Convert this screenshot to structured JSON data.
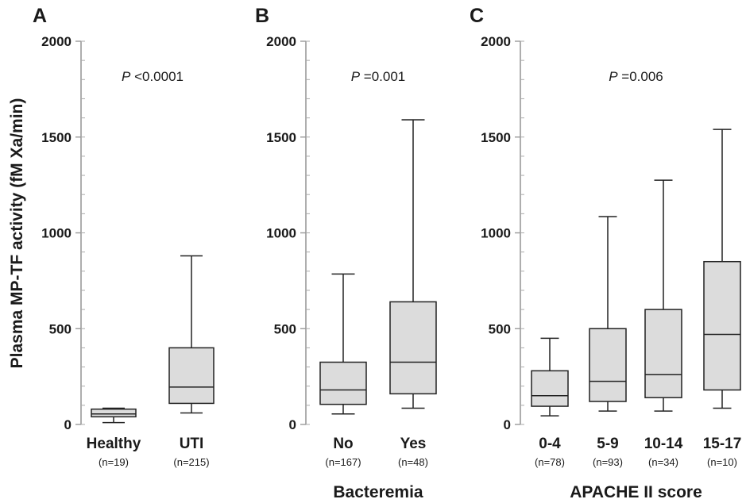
{
  "ylabel": "Plasma MP-TF activity (fM Xa/min)",
  "chart_data": [
    {
      "panel": "A",
      "type": "box",
      "xlabel": "",
      "ylim": [
        0,
        2000
      ],
      "yticks": [
        0,
        500,
        1000,
        1500,
        2000
      ],
      "annotation": {
        "italic": "P",
        "text": "<0.0001"
      },
      "categories": [
        {
          "label": "Healthy",
          "n": "(n=19)",
          "whisker_low": 10,
          "q1": 40,
          "median": 55,
          "q3": 80,
          "whisker_high": 85
        },
        {
          "label": "UTI",
          "n": "(n=215)",
          "whisker_low": 60,
          "q1": 110,
          "median": 195,
          "q3": 400,
          "whisker_high": 880
        }
      ]
    },
    {
      "panel": "B",
      "type": "box",
      "xlabel": "Bacteremia",
      "ylim": [
        0,
        2000
      ],
      "yticks": [
        0,
        500,
        1000,
        1500,
        2000
      ],
      "annotation": {
        "italic": "P",
        "text": "=0.001"
      },
      "categories": [
        {
          "label": "No",
          "n": "(n=167)",
          "whisker_low": 55,
          "q1": 105,
          "median": 180,
          "q3": 325,
          "whisker_high": 785
        },
        {
          "label": "Yes",
          "n": "(n=48)",
          "whisker_low": 85,
          "q1": 160,
          "median": 325,
          "q3": 640,
          "whisker_high": 1590
        }
      ]
    },
    {
      "panel": "C",
      "type": "box",
      "xlabel": "APACHE II score",
      "ylim": [
        0,
        2000
      ],
      "yticks": [
        0,
        500,
        1000,
        1500,
        2000
      ],
      "annotation": {
        "italic": "P",
        "text": "=0.006"
      },
      "categories": [
        {
          "label": "0-4",
          "n": "(n=78)",
          "whisker_low": 45,
          "q1": 95,
          "median": 150,
          "q3": 280,
          "whisker_high": 450
        },
        {
          "label": "5-9",
          "n": "(n=93)",
          "whisker_low": 70,
          "q1": 120,
          "median": 225,
          "q3": 500,
          "whisker_high": 1085
        },
        {
          "label": "10-14",
          "n": "(n=34)",
          "whisker_low": 70,
          "q1": 140,
          "median": 260,
          "q3": 600,
          "whisker_high": 1275
        },
        {
          "label": "15-17",
          "n": "(n=10)",
          "whisker_low": 85,
          "q1": 180,
          "median": 470,
          "q3": 850,
          "whisker_high": 1540
        }
      ]
    }
  ]
}
